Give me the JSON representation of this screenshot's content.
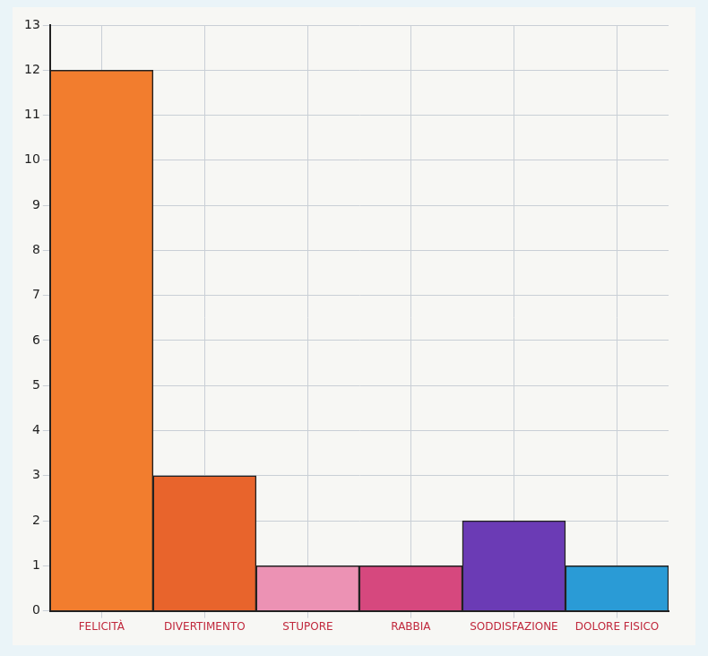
{
  "chart_data": {
    "type": "bar",
    "categories": [
      "FELICITÀ",
      "DIVERTIMENTO",
      "STUPORE",
      "RABBIA",
      "SODDISFAZIONE",
      "DOLORE FISICO"
    ],
    "values": [
      12,
      3,
      1,
      1,
      2,
      1
    ],
    "colors": [
      "#f27d2e",
      "#e8642c",
      "#ec92b4",
      "#d6487e",
      "#6b3bb5",
      "#2a9bd6"
    ],
    "ylim": [
      0,
      13
    ],
    "yticks": [
      0,
      1,
      2,
      3,
      4,
      5,
      6,
      7,
      8,
      9,
      10,
      11,
      12,
      13
    ],
    "grid": true
  }
}
